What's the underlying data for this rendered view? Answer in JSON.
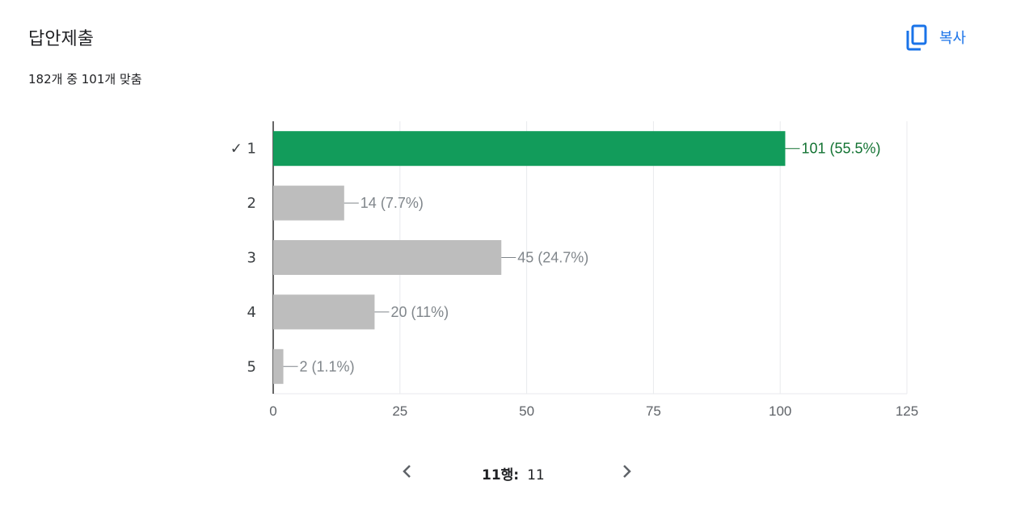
{
  "header": {
    "title": "답안제출",
    "subtitle": "182개 중 101개 맞춤",
    "copy_label": "복사"
  },
  "colors": {
    "correct_bar": "#129c5b",
    "other_bar": "#bdbdbd",
    "correct_label": "#137333",
    "other_label": "#80868b",
    "accent": "#1a73e8"
  },
  "chart_data": {
    "type": "bar",
    "orientation": "horizontal",
    "categories": [
      "✓ 1",
      "2",
      "3",
      "4",
      "5"
    ],
    "values": [
      101,
      14,
      45,
      20,
      2
    ],
    "value_labels": [
      "101 (55.5%)",
      "14 (7.7%)",
      "45 (24.7%)",
      "20 (11%)",
      "2 (1.1%)"
    ],
    "correct_index": 0,
    "xlim": [
      0,
      125
    ],
    "xticks": [
      0,
      25,
      50,
      75,
      100,
      125
    ],
    "grid": true
  },
  "pager": {
    "row_label": "11행:",
    "row_value": "11"
  }
}
